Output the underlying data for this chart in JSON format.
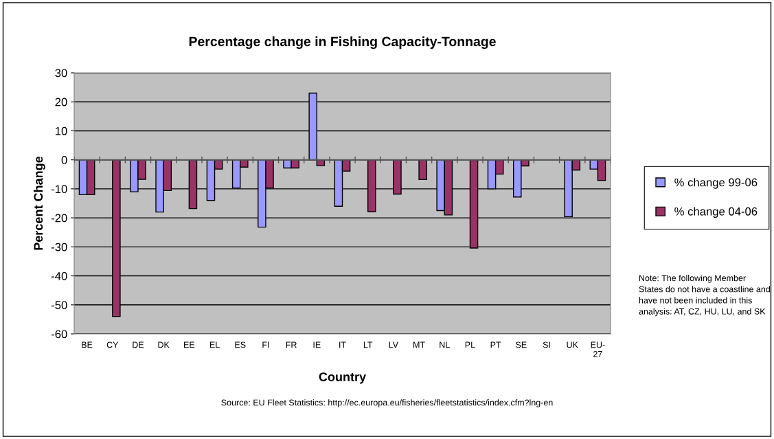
{
  "chart_data": {
    "type": "bar",
    "title": "Percentage change in Fishing Capacity-Tonnage",
    "xlabel": "Country",
    "ylabel": "Percent Change",
    "categories": [
      "BE",
      "CY",
      "DE",
      "DK",
      "EE",
      "EL",
      "ES",
      "FI",
      "FR",
      "IE",
      "IT",
      "LT",
      "LV",
      "MT",
      "NL",
      "PL",
      "PT",
      "SE",
      "SI",
      "UK",
      "EU-27"
    ],
    "series": [
      {
        "name": "% change 99-06",
        "color": "#9999ff",
        "values": [
          -12,
          null,
          -11,
          -18,
          null,
          -14,
          -9.7,
          -23.2,
          -2.8,
          23,
          -16,
          null,
          null,
          null,
          -17.5,
          null,
          -10,
          -12.8,
          null,
          -19.6,
          -3.2
        ]
      },
      {
        "name": "% change 04-06",
        "color": "#993366",
        "values": [
          -12,
          -54,
          -6.7,
          -10.6,
          -16.8,
          -3.2,
          -2.5,
          -9.7,
          -2.8,
          -2,
          -3.9,
          -17.9,
          -11.8,
          -6.8,
          -19,
          -30.4,
          -4.9,
          -2.1,
          null,
          -3.5,
          -7.1
        ]
      }
    ],
    "ylim": [
      -60,
      30
    ],
    "yticks": [
      -60,
      -50,
      -40,
      -30,
      -20,
      -10,
      0,
      10,
      20,
      30
    ],
    "grid": "y",
    "legend": "right",
    "annotations": [
      "Note: The following Member States do not have a coastline and have not been included in this analysis: AT, CZ, HU, LU, and SK",
      "Source: EU Fleet Statistics: http://ec.europa.eu/fisheries/fleetstatistics/index.cfm?lng-en"
    ]
  }
}
